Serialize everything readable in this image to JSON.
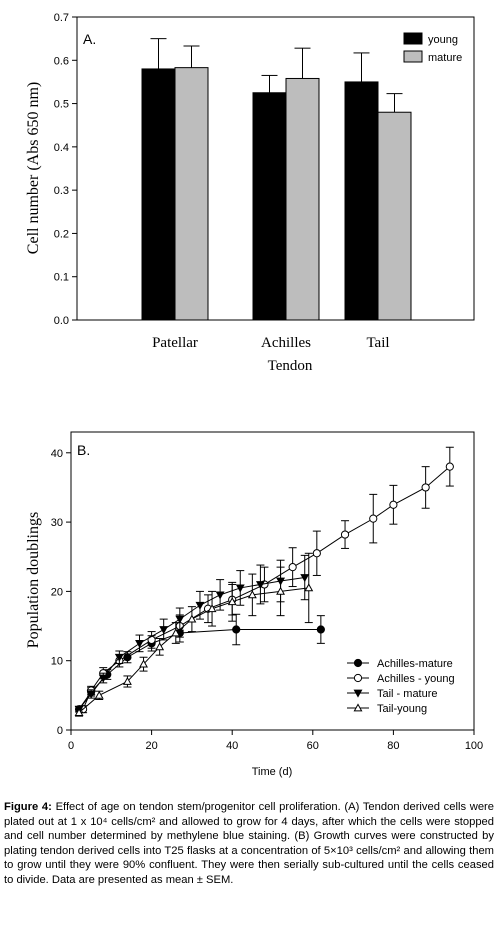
{
  "panelA": {
    "panel_label": "A.",
    "chart_data": {
      "type": "bar",
      "categories": [
        "Patellar",
        "Achilles",
        "Tail"
      ],
      "xlabel": "Tendon",
      "ylabel": "Cell number (Abs 650 nm)",
      "ylim": [
        0,
        0.7
      ],
      "yticks": [
        "0.0",
        "0.1",
        "0.2",
        "0.3",
        "0.4",
        "0.5",
        "0.6",
        "0.7"
      ],
      "legend_position": "top-right",
      "series": [
        {
          "name": "young",
          "color": "#000000",
          "values": [
            0.58,
            0.525,
            0.55
          ],
          "errors": [
            0.07,
            0.04,
            0.067
          ]
        },
        {
          "name": "mature",
          "color": "#bdbdbd",
          "values": [
            0.583,
            0.558,
            0.48
          ],
          "errors": [
            0.05,
            0.07,
            0.043
          ]
        }
      ]
    }
  },
  "panelB": {
    "panel_label": "B.",
    "chart_data": {
      "type": "line",
      "xlabel": "Time (d)",
      "ylabel": "Population doublings",
      "xlim": [
        0,
        100
      ],
      "ylim": [
        0,
        43
      ],
      "xticks": [
        "0",
        "20",
        "40",
        "60",
        "80",
        "100"
      ],
      "yticks": [
        "0",
        "10",
        "20",
        "30",
        "40"
      ],
      "legend_position": "bottom-right",
      "series": [
        {
          "name": "Achilles-mature",
          "marker": "filled-circle",
          "x": [
            2,
            5,
            9,
            14,
            20,
            27,
            41,
            62
          ],
          "y": [
            3.0,
            5.5,
            8.0,
            10.5,
            12.5,
            14.0,
            14.5,
            14.5
          ],
          "err": [
            0.4,
            0.6,
            0.7,
            0.8,
            1.1,
            1.3,
            2.2,
            2.0
          ]
        },
        {
          "name": "Achilles - young",
          "marker": "open-circle",
          "x": [
            3,
            5,
            8,
            12,
            20,
            27,
            34,
            40,
            48,
            55,
            61,
            68,
            75,
            80,
            88,
            94
          ],
          "y": [
            3.0,
            5.7,
            8.2,
            10.0,
            13.0,
            15.0,
            17.5,
            18.8,
            21.0,
            23.5,
            25.5,
            28.2,
            30.5,
            32.5,
            35.0,
            38.0
          ],
          "err": [
            0.5,
            0.6,
            0.8,
            0.9,
            1.2,
            1.6,
            2.0,
            2.2,
            2.5,
            2.8,
            3.2,
            2.0,
            3.5,
            2.8,
            3.0,
            2.8
          ]
        },
        {
          "name": "Tail - mature",
          "marker": "filled-triangle-down",
          "x": [
            2,
            5,
            8,
            12,
            17,
            23,
            27,
            32,
            37,
            42,
            47,
            52,
            58
          ],
          "y": [
            3.0,
            5.2,
            7.5,
            10.5,
            12.5,
            14.5,
            16.0,
            18.0,
            19.5,
            20.5,
            21.0,
            21.5,
            22.0
          ],
          "err": [
            0.4,
            0.6,
            0.7,
            0.9,
            1.2,
            1.5,
            1.6,
            2.0,
            2.2,
            2.5,
            2.8,
            3.0,
            3.2
          ]
        },
        {
          "name": "Tail-young",
          "marker": "open-triangle-up",
          "x": [
            2,
            7,
            14,
            18,
            22,
            26,
            30,
            35,
            40,
            45,
            52,
            59
          ],
          "y": [
            2.5,
            5.0,
            7.0,
            9.5,
            12.0,
            14.0,
            16.0,
            17.5,
            18.5,
            19.5,
            20.0,
            20.5
          ],
          "err": [
            0.5,
            0.6,
            0.8,
            1.0,
            1.2,
            1.5,
            1.8,
            2.5,
            2.8,
            3.0,
            3.5,
            5.0
          ]
        }
      ]
    }
  },
  "caption": {
    "label": "Figure 4:",
    "text": " Effect of age on tendon stem/progenitor cell proliferation. (A) Tendon derived cells were plated out at 1 x 10⁴ cells/cm² and allowed to grow for 4 days, after which the cells were stopped and cell number determined by methylene blue staining. (B) Growth curves were constructed by plating tendon derived cells into T25 flasks at a concentration of 5×10³ cells/cm² and allowing them to grow until they were 90% confluent. They were then serially sub-cultured until the cells ceased to divide. Data are presented as mean ± SEM."
  }
}
